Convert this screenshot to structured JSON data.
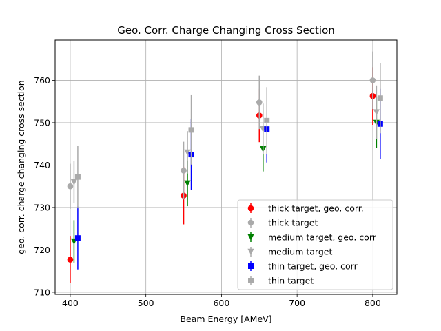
{
  "chart_data": {
    "type": "scatter",
    "title": "Geo. Corr. Charge Changing Cross Section",
    "xlabel": "Beam Energy [AMeV]",
    "ylabel": "geo. corr. charge changing cross section",
    "xlim": [
      380,
      832
    ],
    "ylim": [
      709.5,
      769.5
    ],
    "xticks": [
      400,
      500,
      600,
      700,
      800
    ],
    "yticks": [
      710,
      720,
      730,
      740,
      750,
      760
    ],
    "grid": true,
    "legend_position": "lower-right",
    "series": [
      {
        "name": "thick target, geo. corr.",
        "marker": "circle",
        "color": "#ff0000",
        "x": [
          400,
          550,
          650,
          800
        ],
        "y": [
          717.7,
          732.8,
          751.7,
          756.3
        ],
        "yerr": [
          5.6,
          6.8,
          6.3,
          6.8
        ]
      },
      {
        "name": "thick target",
        "marker": "circle",
        "color": "#aaaaaa",
        "x": [
          400,
          550,
          650,
          800
        ],
        "y": [
          735.0,
          738.7,
          754.8,
          760.0
        ],
        "yerr": [
          5.3,
          6.8,
          6.3,
          6.8
        ]
      },
      {
        "name": "medium target, geo. corr",
        "marker": "triangle-down",
        "color": "#008000",
        "x": [
          405,
          555,
          655,
          805
        ],
        "y": [
          722.0,
          735.7,
          743.8,
          750.0
        ],
        "yerr": [
          5.0,
          5.4,
          5.3,
          6.0
        ]
      },
      {
        "name": "medium target",
        "marker": "triangle-down",
        "color": "#aaaaaa",
        "x": [
          405,
          555,
          655,
          805
        ],
        "y": [
          736.0,
          743.0,
          748.5,
          752.5
        ],
        "yerr": [
          5.0,
          5.0,
          6.0,
          6.3
        ]
      },
      {
        "name": "thin target, geo. corr",
        "marker": "square",
        "color": "#0000ff",
        "x": [
          410,
          560,
          660,
          810
        ],
        "y": [
          722.8,
          742.5,
          748.5,
          749.7
        ],
        "yerr": [
          7.4,
          8.4,
          7.9,
          8.3
        ]
      },
      {
        "name": "thin target",
        "marker": "square",
        "color": "#aaaaaa",
        "x": [
          410,
          560,
          660,
          810
        ],
        "y": [
          737.2,
          748.3,
          750.5,
          755.8
        ],
        "yerr": [
          7.4,
          8.2,
          7.9,
          8.3
        ]
      }
    ]
  }
}
